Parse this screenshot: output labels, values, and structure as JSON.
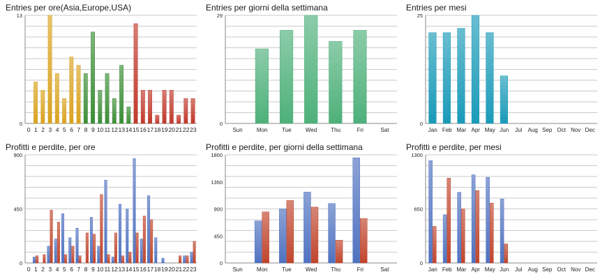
{
  "colors": {
    "gridline": "#b8b8b8",
    "axis": "#888888",
    "asia": "#d9a21f",
    "europe": "#3b8d35",
    "usa": "#c0392b",
    "weekday": "#4eb07a",
    "month": "#1a9ab8",
    "profit": "#4f72c0",
    "loss": "#c0452c"
  },
  "chart_data": [
    {
      "id": "entries-hours",
      "type": "bar",
      "title": "Entries per ore(Asia,Europe,USA)",
      "categories": [
        "0",
        "1",
        "2",
        "3",
        "4",
        "5",
        "6",
        "7",
        "8",
        "9",
        "10",
        "11",
        "12",
        "13",
        "14",
        "15",
        "16",
        "17",
        "18",
        "19",
        "20",
        "21",
        "22",
        "23"
      ],
      "ylim": [
        0,
        13
      ],
      "yticks": [
        "0",
        "13"
      ],
      "grid": true,
      "series": [
        {
          "values": [
            0,
            5,
            4,
            13,
            6,
            3,
            8,
            7,
            6,
            11,
            4,
            6,
            3,
            7,
            2,
            12,
            4,
            4,
            1,
            4,
            4,
            1,
            3,
            3
          ],
          "colors": [
            "asia",
            "asia",
            "asia",
            "asia",
            "asia",
            "asia",
            "asia",
            "asia",
            "europe",
            "europe",
            "europe",
            "europe",
            "europe",
            "europe",
            "europe",
            "usa",
            "usa",
            "usa",
            "usa",
            "usa",
            "usa",
            "usa",
            "usa",
            "usa"
          ]
        }
      ]
    },
    {
      "id": "entries-weekdays",
      "type": "bar",
      "title": "Entries per giorni della settimana",
      "categories": [
        "Sun",
        "Mon",
        "Tue",
        "Wed",
        "Thu",
        "Fri",
        "Sat"
      ],
      "ylim": [
        0,
        29
      ],
      "yticks": [
        "0",
        "29"
      ],
      "grid": true,
      "series": [
        {
          "values": [
            0,
            20,
            25,
            29,
            22,
            25,
            0
          ],
          "color": "weekday"
        }
      ]
    },
    {
      "id": "entries-months",
      "type": "bar",
      "title": "Entries per mesi",
      "categories": [
        "Jan",
        "Feb",
        "Mar",
        "Apr",
        "May",
        "Jun",
        "Jul",
        "Aug",
        "Sep",
        "Oct",
        "Nov",
        "Dec"
      ],
      "ylim": [
        0,
        25
      ],
      "yticks": [
        "0",
        "25"
      ],
      "grid": true,
      "series": [
        {
          "values": [
            21,
            21,
            22,
            25,
            21,
            11,
            0,
            0,
            0,
            0,
            0,
            0
          ],
          "color": "month"
        }
      ]
    },
    {
      "id": "profit-hours",
      "type": "bar",
      "title": "Profitti e perdite, per ore",
      "categories": [
        "0",
        "1",
        "2",
        "3",
        "4",
        "5",
        "6",
        "7",
        "8",
        "9",
        "10",
        "11",
        "12",
        "13",
        "14",
        "15",
        "16",
        "17",
        "18",
        "19",
        "20",
        "21",
        "22",
        "23"
      ],
      "ylim": [
        0,
        900
      ],
      "yticks": [
        "0",
        "450",
        "900"
      ],
      "grid": true,
      "series": [
        {
          "color": "profit",
          "values": [
            0,
            50,
            0,
            140,
            200,
            410,
            210,
            290,
            0,
            380,
            140,
            690,
            50,
            490,
            450,
            870,
            200,
            560,
            210,
            40,
            0,
            0,
            60,
            90
          ]
        },
        {
          "color": "loss",
          "values": [
            0,
            60,
            70,
            440,
            340,
            70,
            140,
            60,
            250,
            240,
            570,
            70,
            250,
            60,
            90,
            250,
            390,
            360,
            0,
            0,
            0,
            60,
            60,
            180
          ]
        }
      ]
    },
    {
      "id": "profit-weekdays",
      "type": "bar",
      "title": "Profitti e perdite, per giorni della settimana",
      "categories": [
        "Sun",
        "Mon",
        "Tue",
        "Wed",
        "Thu",
        "Fri",
        "Sat"
      ],
      "ylim": [
        0,
        1800
      ],
      "yticks": [
        "0",
        "450",
        "900",
        "1350",
        "1800"
      ],
      "grid": true,
      "series": [
        {
          "color": "profit",
          "values": [
            0,
            700,
            900,
            1180,
            990,
            1750,
            0
          ]
        },
        {
          "color": "loss",
          "values": [
            0,
            850,
            1040,
            930,
            380,
            740,
            0
          ]
        }
      ]
    },
    {
      "id": "profit-months",
      "type": "bar",
      "title": "Profitti e perdite, per mesi",
      "categories": [
        "Jan",
        "Feb",
        "Mar",
        "Apr",
        "May",
        "Jun",
        "Jul",
        "Aug",
        "Sep",
        "Oct",
        "Nov",
        "Dec"
      ],
      "ylim": [
        0,
        1300
      ],
      "yticks": [
        "0",
        "650",
        "1300"
      ],
      "grid": true,
      "series": [
        {
          "color": "profit",
          "values": [
            1230,
            580,
            850,
            1060,
            1030,
            770,
            0,
            0,
            0,
            0,
            0,
            0
          ]
        },
        {
          "color": "loss",
          "values": [
            440,
            1020,
            650,
            870,
            720,
            230,
            0,
            0,
            0,
            0,
            0,
            0
          ]
        }
      ]
    }
  ]
}
